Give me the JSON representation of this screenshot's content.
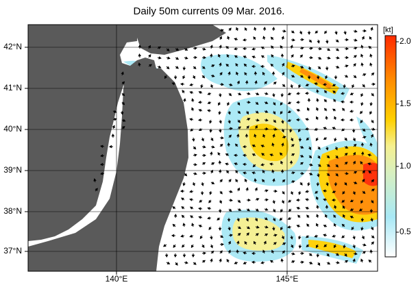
{
  "title": "Daily 50m currents 09 Mar. 2016.",
  "map": {
    "lat_labels": [
      "42°N",
      "41°N",
      "40°N",
      "39°N",
      "38°N",
      "37°N"
    ],
    "lon_labels": [
      "140°E",
      "145°E"
    ],
    "colors": {
      "land": "#5a5a5a",
      "sea": "#ffffff",
      "grid": "#000000"
    }
  },
  "colorbar": {
    "unit": "[kt]",
    "ticks": [
      "2.0",
      "1.5",
      "1.0",
      "0.5"
    ],
    "range": [
      0,
      2.0
    ],
    "colors": [
      "#ffffff",
      "#a8e8f5",
      "#f5f090",
      "#ffd000",
      "#ff8c00",
      "#ff2a00"
    ]
  }
}
